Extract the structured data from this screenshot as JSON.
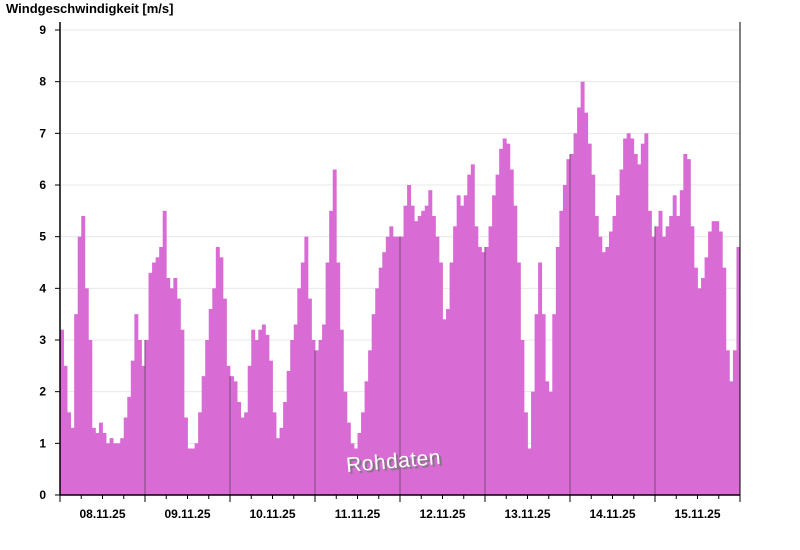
{
  "chart_data": {
    "type": "bar",
    "title": "Windgeschwindigkeit [m/s]",
    "xlabel": "",
    "ylabel": "Windgeschwindigkeit [m/s]",
    "ylim": [
      0,
      9
    ],
    "yticks": [
      "0",
      "1",
      "2",
      "3",
      "4",
      "5",
      "6",
      "7",
      "8",
      "9"
    ],
    "grid": true,
    "legend": "none",
    "color": "#d86cd4",
    "watermark": "Rohdaten",
    "x_tick_labels": [
      "08.11.25",
      "09.11.25",
      "10.11.25",
      "11.11.25",
      "12.11.25",
      "13.11.25",
      "14.11.25",
      "15.11.25"
    ],
    "resolution": "hourly",
    "days": [
      {
        "date": "08.11.25",
        "values": [
          3.2,
          2.5,
          1.6,
          1.3,
          3.5,
          5.0,
          5.4,
          4.0,
          3.0,
          1.3,
          1.2,
          1.4,
          1.2,
          1.0,
          1.1,
          1.0,
          1.0,
          1.1,
          1.5,
          1.9,
          2.6,
          3.5,
          3.0,
          2.5
        ]
      },
      {
        "date": "09.11.25",
        "values": [
          3.0,
          4.3,
          4.5,
          4.6,
          4.8,
          5.5,
          4.2,
          4.0,
          4.2,
          3.8,
          3.2,
          1.5,
          0.9,
          0.9,
          1.0,
          1.6,
          2.3,
          3.0,
          3.6,
          4.0,
          4.8,
          4.6,
          3.8,
          2.5
        ]
      },
      {
        "date": "10.11.25",
        "values": [
          2.3,
          2.2,
          1.8,
          1.5,
          1.6,
          2.5,
          3.2,
          3.0,
          3.2,
          3.3,
          3.1,
          2.6,
          1.6,
          1.1,
          1.3,
          1.8,
          2.4,
          3.0,
          3.3,
          4.0,
          4.5,
          5.0,
          3.8,
          3.0
        ]
      },
      {
        "date": "11.11.25",
        "values": [
          2.8,
          3.0,
          3.3,
          4.5,
          5.5,
          6.3,
          4.5,
          3.2,
          2.0,
          1.4,
          1.0,
          0.9,
          1.2,
          1.6,
          2.2,
          2.8,
          3.5,
          4.0,
          4.4,
          4.7,
          5.0,
          5.2,
          5.0,
          5.0
        ]
      },
      {
        "date": "12.11.25",
        "values": [
          5.0,
          5.6,
          6.0,
          5.6,
          5.3,
          5.4,
          5.5,
          5.6,
          5.9,
          5.4,
          5.0,
          4.5,
          3.4,
          3.6,
          4.5,
          5.2,
          5.8,
          5.6,
          5.8,
          6.2,
          6.4,
          5.2,
          4.8,
          4.7
        ]
      },
      {
        "date": "13.11.25",
        "values": [
          4.8,
          5.2,
          5.8,
          6.2,
          6.7,
          6.9,
          6.8,
          6.3,
          5.6,
          4.5,
          3.0,
          1.6,
          0.9,
          2.0,
          3.5,
          4.5,
          3.5,
          2.2,
          2.0,
          3.5,
          4.8,
          5.5,
          6.0,
          6.5
        ]
      },
      {
        "date": "14.11.25",
        "values": [
          6.6,
          7.0,
          7.5,
          8.0,
          7.4,
          6.8,
          6.2,
          5.4,
          5.0,
          4.7,
          4.8,
          5.1,
          5.4,
          5.8,
          6.3,
          6.9,
          7.0,
          6.9,
          6.6,
          6.4,
          6.8,
          7.0,
          5.5,
          5.0
        ]
      },
      {
        "date": "15.11.25",
        "values": [
          5.2,
          5.5,
          5.0,
          5.2,
          5.4,
          5.8,
          5.4,
          5.9,
          6.6,
          6.5,
          5.2,
          4.4,
          4.0,
          4.2,
          4.6,
          5.1,
          5.3,
          5.3,
          5.1,
          4.4,
          2.8,
          2.2,
          2.8,
          4.8
        ]
      }
    ]
  }
}
